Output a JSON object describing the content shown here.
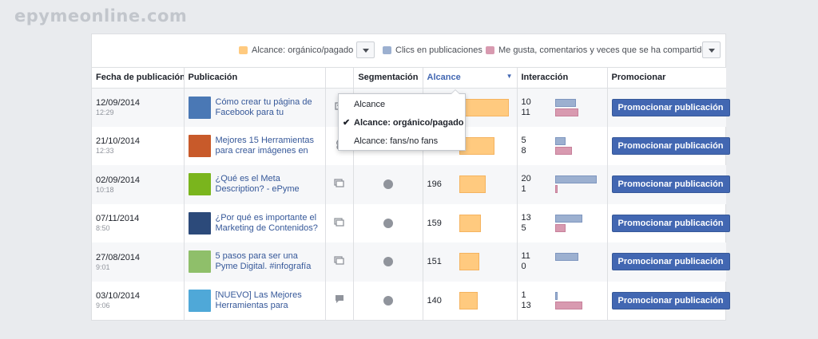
{
  "brand": "epymeonline.com",
  "legend": {
    "items": [
      {
        "label": "Alcance: orgánico/pagado",
        "color": "#ffca7f"
      },
      {
        "label": "Clics en publicaciones",
        "color": "#9cb0d0"
      },
      {
        "label": "Me gusta, comentarios y veces que se ha compartido",
        "color": "#d89ab0"
      }
    ]
  },
  "dropdown": {
    "items": [
      "Alcance",
      "Alcance: orgánico/pagado",
      "Alcance: fans/no fans"
    ],
    "selected_index": 1,
    "check": "✔"
  },
  "table": {
    "headers": {
      "date": "Fecha de publicación",
      "post": "Publicación",
      "type": "",
      "targeting": "Segmentación",
      "reach": "Alcance",
      "engagement": "Interacción",
      "promote": "Promocionar"
    },
    "max_reach": 372,
    "max_engagement": 20,
    "rows": [
      {
        "date": "12/09/2014",
        "time": "12:29",
        "title": "Cómo crear tu página de Facebook para tu",
        "type_icon": "photo-icon",
        "reach": "372",
        "clicks": "10",
        "likes": "11",
        "promote": "Promocionar publicación",
        "thumb": "#4a78b5"
      },
      {
        "date": "21/10/2014",
        "time": "12:33",
        "title": "Mejores 15 Herramientas para crear imágenes en",
        "type_icon": "link-icon",
        "reach": "264",
        "clicks": "5",
        "likes": "8",
        "promote": "Promocionar publicación",
        "thumb": "#c85a2a"
      },
      {
        "date": "02/09/2014",
        "time": "10:18",
        "title": "¿Qué es el Meta Description? - ePyme",
        "type_icon": "shared-icon",
        "reach": "196",
        "clicks": "20",
        "likes": "1",
        "promote": "Promocionar publicación",
        "thumb": "#7ab51d"
      },
      {
        "date": "07/11/2014",
        "time": "8:50",
        "title": "¿Por qué es importante el Marketing de Contenidos?",
        "type_icon": "shared-icon",
        "reach": "159",
        "clicks": "13",
        "likes": "5",
        "promote": "Promocionar publicación",
        "thumb": "#2c4a7a"
      },
      {
        "date": "27/08/2014",
        "time": "9:01",
        "title": "5 pasos para ser una Pyme Digital. #infografía",
        "type_icon": "shared-icon",
        "reach": "151",
        "clicks": "11",
        "likes": "0",
        "promote": "Promocionar publicación",
        "thumb": "#8fbf6a"
      },
      {
        "date": "03/10/2014",
        "time": "9:06",
        "title": "[NUEVO] Las Mejores Herramientas para",
        "type_icon": "status-icon",
        "reach": "140",
        "clicks": "1",
        "likes": "13",
        "promote": "Promocionar publicación",
        "thumb": "#4fa8d8"
      }
    ]
  }
}
